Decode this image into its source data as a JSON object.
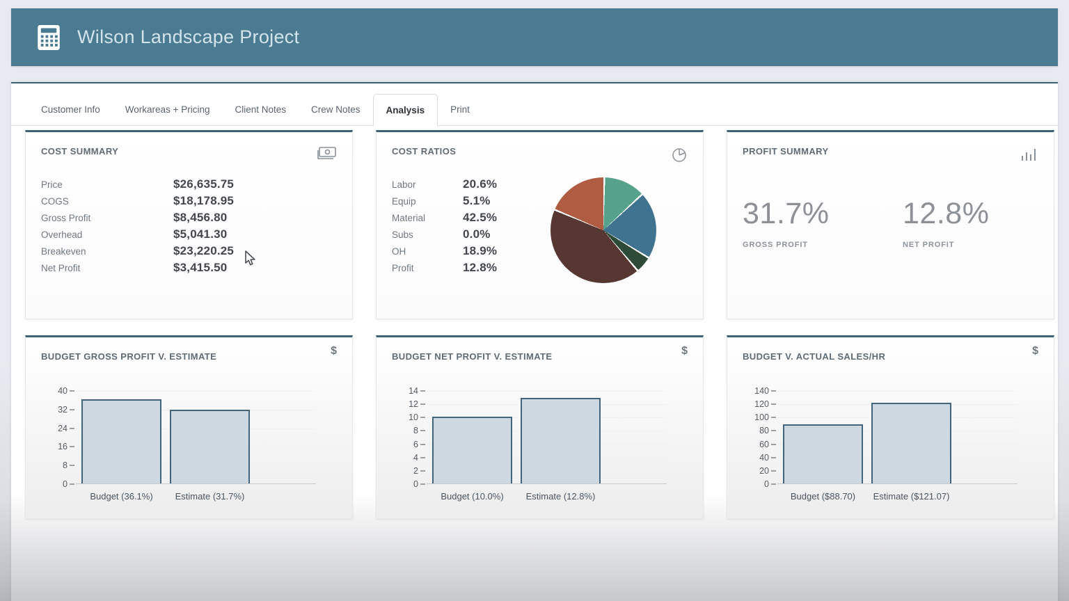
{
  "header": {
    "title": "Wilson Landscape Project"
  },
  "tabs": [
    {
      "label": "Customer Info",
      "active": false
    },
    {
      "label": "Workareas + Pricing",
      "active": false
    },
    {
      "label": "Client Notes",
      "active": false
    },
    {
      "label": "Crew Notes",
      "active": false
    },
    {
      "label": "Analysis",
      "active": true
    },
    {
      "label": "Print",
      "active": false
    }
  ],
  "cost_summary": {
    "title": "COST SUMMARY",
    "rows": [
      {
        "label": "Price",
        "value": "$26,635.75"
      },
      {
        "label": "COGS",
        "value": "$18,178.95"
      },
      {
        "label": "Gross Profit",
        "value": "$8,456.80"
      },
      {
        "label": "Overhead",
        "value": "$5,041.30"
      },
      {
        "label": "Breakeven",
        "value": "$23,220.25"
      },
      {
        "label": "Net Profit",
        "value": "$3,415.50"
      }
    ]
  },
  "cost_ratios": {
    "title": "COST RATIOS",
    "rows": [
      {
        "label": "Labor",
        "value": "20.6%"
      },
      {
        "label": "Equip",
        "value": "5.1%"
      },
      {
        "label": "Material",
        "value": "42.5%"
      },
      {
        "label": "Subs",
        "value": "0.0%"
      },
      {
        "label": "OH",
        "value": "18.9%"
      },
      {
        "label": "Profit",
        "value": "12.8%"
      }
    ]
  },
  "profit_summary": {
    "title": "PROFIT SUMMARY",
    "metrics": [
      {
        "value": "31.7%",
        "label": "GROSS PROFIT"
      },
      {
        "value": "12.8%",
        "label": "NET PROFIT"
      }
    ]
  },
  "chart_data": [
    {
      "type": "pie",
      "title": "COST RATIOS",
      "labels": [
        "Labor",
        "Equip",
        "Material",
        "Subs",
        "OH",
        "Profit"
      ],
      "values": [
        20.6,
        5.1,
        42.5,
        0.0,
        18.9,
        12.8
      ],
      "slices_clockwise_from_top": [
        {
          "label": "Profit",
          "value": 12.8,
          "color": "#55a189"
        },
        {
          "label": "Labor",
          "value": 20.6,
          "color": "#40738f"
        },
        {
          "label": "Equip",
          "value": 5.1,
          "color": "#2e4b38"
        },
        {
          "label": "Material",
          "value": 42.5,
          "color": "#573731"
        },
        {
          "label": "OH",
          "value": 18.9,
          "color": "#b05c42"
        }
      ],
      "legend_position": "left-text-column"
    },
    {
      "type": "bar",
      "title": "BUDGET GROSS PROFIT V. ESTIMATE",
      "categories": [
        "Budget (36.1%)",
        "Estimate (31.7%)"
      ],
      "values": [
        36.1,
        31.7
      ],
      "ylim": [
        0,
        40
      ],
      "yticks": [
        0,
        8,
        16,
        24,
        32,
        40
      ],
      "grid": true,
      "bar_fill": "#cdd8e1",
      "bar_border": "#41647c"
    },
    {
      "type": "bar",
      "title": "BUDGET NET PROFIT V. ESTIMATE",
      "categories": [
        "Budget (10.0%)",
        "Estimate (12.8%)"
      ],
      "values": [
        10.0,
        12.8
      ],
      "ylim": [
        0,
        14
      ],
      "yticks": [
        0,
        2,
        4,
        6,
        8,
        10,
        12,
        14
      ],
      "grid": true,
      "bar_fill": "#cdd8e1",
      "bar_border": "#41647c"
    },
    {
      "type": "bar",
      "title": "BUDGET V. ACTUAL SALES/HR",
      "categories": [
        "Budget ($88.70)",
        "Estimate ($121.07)"
      ],
      "values": [
        88.7,
        121.07
      ],
      "ylim": [
        0,
        140
      ],
      "yticks": [
        0,
        20,
        40,
        60,
        80,
        100,
        120,
        140
      ],
      "grid": true,
      "bar_fill": "#cdd8e1",
      "bar_border": "#41647c"
    }
  ],
  "icons": {
    "dollar": "$"
  },
  "colors": {
    "header_bg": "#4a7b91",
    "panel_top_border": "#37616f",
    "card_top_border": "#3d6374",
    "bar_fill": "#cdd8e1",
    "bar_border": "#41647c"
  }
}
